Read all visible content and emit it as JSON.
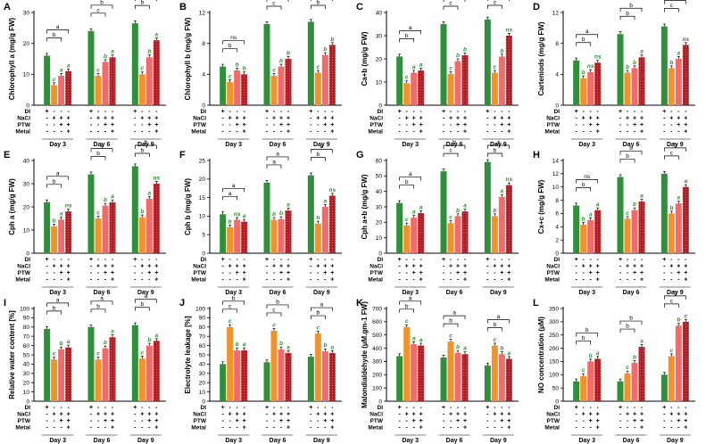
{
  "colors": {
    "DI": "#2f8f3a",
    "NaCl": "#f2922a",
    "PTW": "#f26b6b",
    "Metal": "#c8232c",
    "sig": "#2e8b2e"
  },
  "treatments": [
    "DI",
    "NaCl",
    "PTW",
    "Metal"
  ],
  "days": [
    "Day 3",
    "Day 6",
    "Day 9"
  ],
  "pattern": [
    [
      "+",
      "-",
      "-",
      "-"
    ],
    [
      "-",
      "+",
      "+",
      "+"
    ],
    [
      "-",
      "-",
      "+",
      "+"
    ],
    [
      "-",
      "-",
      "-",
      "+"
    ]
  ],
  "chart_data": [
    {
      "type": "bar",
      "panel": "A",
      "ylabel": "Chlorophyll a (mg/g FW)",
      "ylim": [
        0,
        30
      ],
      "yticks": [
        0,
        10,
        20,
        30
      ],
      "series": [
        {
          "name": "DI",
          "values": [
            16,
            24,
            26.5
          ]
        },
        {
          "name": "NaCl",
          "values": [
            6.5,
            9.5,
            10
          ]
        },
        {
          "name": "PTW",
          "values": [
            9.5,
            14,
            15.5
          ]
        },
        {
          "name": "Metal",
          "values": [
            11,
            15.5,
            21
          ]
        }
      ],
      "letters": [
        [
          "c",
          "a",
          "a"
        ],
        [
          "c",
          "b",
          "a"
        ],
        [
          "c",
          "b",
          "a"
        ]
      ],
      "brackets": [
        [
          "b",
          "a"
        ],
        [
          "c",
          "b"
        ],
        [
          "b",
          "a"
        ]
      ]
    },
    {
      "type": "bar",
      "panel": "B",
      "ylabel": "Chlorophyll b (mg/g FW)",
      "ylim": [
        0,
        12
      ],
      "yticks": [
        0,
        4,
        8,
        12
      ],
      "series": [
        {
          "name": "DI",
          "values": [
            5,
            10.5,
            10.8
          ]
        },
        {
          "name": "NaCl",
          "values": [
            3,
            3.8,
            4.2
          ]
        },
        {
          "name": "PTW",
          "values": [
            4.5,
            5,
            6.5
          ]
        },
        {
          "name": "Metal",
          "values": [
            4,
            6,
            7.8
          ]
        }
      ],
      "letters": [
        [
          "c",
          "b",
          "b"
        ],
        [
          "c",
          "b",
          "b"
        ],
        [
          "c",
          "b",
          "b"
        ]
      ],
      "brackets": [
        [
          "b",
          "ns"
        ],
        [
          "c",
          "b"
        ],
        [
          "b",
          "a"
        ]
      ]
    },
    {
      "type": "bar",
      "panel": "C",
      "ylabel": "Ca+b (mg/g FW)",
      "ylim": [
        0,
        40
      ],
      "yticks": [
        0,
        10,
        20,
        30,
        40
      ],
      "series": [
        {
          "name": "DI",
          "values": [
            21,
            35,
            37
          ]
        },
        {
          "name": "NaCl",
          "values": [
            9.5,
            13.5,
            14
          ]
        },
        {
          "name": "PTW",
          "values": [
            14,
            19,
            21
          ]
        },
        {
          "name": "Metal",
          "values": [
            15,
            21.5,
            30
          ]
        }
      ],
      "letters": [
        [
          "c",
          "a",
          "a"
        ],
        [
          "c",
          "b",
          "b"
        ],
        [
          "c",
          "b",
          "ns"
        ]
      ],
      "brackets": [
        [
          "b",
          "a"
        ],
        [
          "c",
          "b"
        ],
        [
          "c",
          "b"
        ]
      ]
    },
    {
      "type": "bar",
      "panel": "D",
      "ylabel": "Carteniods (mg/g FW)",
      "ylim": [
        0,
        12
      ],
      "yticks": [
        0,
        4,
        8,
        12
      ],
      "series": [
        {
          "name": "DI",
          "values": [
            5.8,
            9.2,
            10.2
          ]
        },
        {
          "name": "NaCl",
          "values": [
            3.5,
            4.2,
            4.8
          ]
        },
        {
          "name": "PTW",
          "values": [
            4.3,
            4.8,
            6
          ]
        },
        {
          "name": "Metal",
          "values": [
            5.5,
            6.2,
            7.8
          ]
        }
      ],
      "letters": [
        [
          "b",
          "ns",
          "ns"
        ],
        [
          "b",
          "b",
          "a"
        ],
        [
          "b",
          "a",
          "ns"
        ]
      ],
      "brackets": [
        [
          "b",
          "a"
        ],
        [
          "b",
          "b"
        ],
        [
          "c",
          "b"
        ]
      ]
    },
    {
      "type": "bar",
      "panel": "E",
      "ylabel": "Cph a (mg/g FW)",
      "ylim": [
        0,
        40
      ],
      "yticks": [
        0,
        10,
        20,
        30,
        40
      ],
      "series": [
        {
          "name": "DI",
          "values": [
            22,
            34,
            37.5
          ]
        },
        {
          "name": "NaCl",
          "values": [
            11.5,
            15,
            15.5
          ]
        },
        {
          "name": "PTW",
          "values": [
            14.5,
            20.5,
            23.5
          ]
        },
        {
          "name": "Metal",
          "values": [
            18,
            22,
            30
          ]
        }
      ],
      "letters": [
        [
          "b",
          "a",
          "ns"
        ],
        [
          "c",
          "b",
          "a"
        ],
        [
          "b",
          "a",
          "ns"
        ]
      ],
      "brackets": [
        [
          "b",
          "a"
        ],
        [
          "b",
          "a"
        ],
        [
          "b",
          "b"
        ]
      ]
    },
    {
      "type": "bar",
      "panel": "F",
      "ylabel": "Cph b (mg/g FW)",
      "ylim": [
        0,
        25
      ],
      "yticks": [
        0,
        5,
        10,
        15,
        20,
        25
      ],
      "series": [
        {
          "name": "DI",
          "values": [
            10.5,
            19,
            21
          ]
        },
        {
          "name": "NaCl",
          "values": [
            7,
            9,
            8
          ]
        },
        {
          "name": "PTW",
          "values": [
            9,
            9.2,
            12.5
          ]
        },
        {
          "name": "Metal",
          "values": [
            8.5,
            11.5,
            15.5
          ]
        }
      ],
      "letters": [
        [
          "b",
          "ns",
          "a"
        ],
        [
          "b",
          "b",
          "a"
        ],
        [
          "b",
          "a",
          "ns"
        ]
      ],
      "brackets": [
        [
          "a",
          "a"
        ],
        [
          "a",
          "a"
        ],
        [
          "b",
          "a"
        ]
      ]
    },
    {
      "type": "bar",
      "panel": "G",
      "ylabel": "Cph a+b (mg/g FW)",
      "ylim": [
        0,
        60
      ],
      "yticks": [
        0,
        10,
        20,
        30,
        40,
        50,
        60
      ],
      "series": [
        {
          "name": "DI",
          "values": [
            32.5,
            53,
            59
          ]
        },
        {
          "name": "NaCl",
          "values": [
            18,
            19.5,
            24
          ]
        },
        {
          "name": "PTW",
          "values": [
            23,
            24,
            36.5
          ]
        },
        {
          "name": "Metal",
          "values": [
            26,
            27,
            44
          ]
        }
      ],
      "letters": [
        [
          "c",
          "a",
          "a"
        ],
        [
          "c",
          "b",
          "a"
        ],
        [
          "b",
          "a",
          "ns"
        ]
      ],
      "brackets": [
        [
          "b",
          "a"
        ],
        [
          "c",
          "b"
        ],
        [
          "b",
          "a"
        ]
      ]
    },
    {
      "type": "bar",
      "panel": "H",
      "ylabel": "Cx+c (mg/g FW)",
      "ylim": [
        0,
        14
      ],
      "yticks": [
        0,
        2,
        4,
        6,
        8,
        10,
        12,
        14
      ],
      "series": [
        {
          "name": "DI",
          "values": [
            7.2,
            11.5,
            12
          ]
        },
        {
          "name": "NaCl",
          "values": [
            4.3,
            5.2,
            6
          ]
        },
        {
          "name": "PTW",
          "values": [
            5,
            6.5,
            7.5
          ]
        },
        {
          "name": "Metal",
          "values": [
            6.5,
            7.8,
            10
          ]
        }
      ],
      "letters": [
        [
          "b",
          "a",
          "a"
        ],
        [
          "c",
          "b",
          "a"
        ],
        [
          "b",
          "a",
          "a"
        ]
      ],
      "brackets": [
        [
          "b",
          "ns"
        ],
        [
          "b",
          "b"
        ],
        [
          "c",
          "b"
        ]
      ]
    },
    {
      "type": "bar",
      "panel": "I",
      "ylabel": "Relative water content [%]",
      "ylim": [
        0,
        100
      ],
      "yticks": [
        0,
        10,
        20,
        30,
        40,
        50,
        60,
        70,
        80,
        90,
        100
      ],
      "series": [
        {
          "name": "DI",
          "values": [
            78,
            80,
            82
          ]
        },
        {
          "name": "NaCl",
          "values": [
            45,
            45,
            46
          ]
        },
        {
          "name": "PTW",
          "values": [
            56,
            57,
            60
          ]
        },
        {
          "name": "Metal",
          "values": [
            58,
            69,
            65
          ]
        }
      ],
      "letters": [
        [
          "c",
          "b",
          "a"
        ],
        [
          "c",
          "b",
          "a"
        ],
        [
          "c",
          "b",
          "a"
        ]
      ],
      "brackets": [
        [
          "b",
          "a"
        ],
        [
          "b",
          "a"
        ],
        [
          "b",
          "a"
        ]
      ]
    },
    {
      "type": "bar",
      "panel": "J",
      "ylabel": "Electrolyte leakage [%]",
      "ylim": [
        0,
        100
      ],
      "yticks": [
        0,
        10,
        20,
        30,
        40,
        50,
        60,
        70,
        80,
        90,
        100
      ],
      "series": [
        {
          "name": "DI",
          "values": [
            40,
            42,
            48
          ]
        },
        {
          "name": "NaCl",
          "values": [
            80,
            76,
            73
          ]
        },
        {
          "name": "PTW",
          "values": [
            55,
            56,
            54
          ]
        },
        {
          "name": "Metal",
          "values": [
            55,
            52,
            52
          ]
        }
      ],
      "letters": [
        [
          "c",
          "b",
          "a"
        ],
        [
          "c",
          "b",
          "a"
        ],
        [
          "c",
          "b",
          "a"
        ]
      ],
      "brackets": [
        [
          "c",
          "b"
        ],
        [
          "c",
          "b"
        ],
        [
          "b",
          "a"
        ]
      ]
    },
    {
      "type": "bar",
      "panel": "K",
      "ylabel": "Malondialdehyde (µM.gm-1 FW)",
      "ylim": [
        0,
        700
      ],
      "yticks": [
        0,
        100,
        200,
        300,
        400,
        500,
        600,
        700
      ],
      "series": [
        {
          "name": "DI",
          "values": [
            340,
            330,
            270
          ]
        },
        {
          "name": "NaCl",
          "values": [
            560,
            450,
            420
          ]
        },
        {
          "name": "PTW",
          "values": [
            430,
            365,
            355
          ]
        },
        {
          "name": "Metal",
          "values": [
            420,
            355,
            320
          ]
        }
      ],
      "letters": [
        [
          "c",
          "a",
          "a"
        ],
        [
          "c",
          "b",
          "a"
        ],
        [
          "c",
          "b",
          "a"
        ]
      ],
      "brackets": [
        [
          "b",
          "a"
        ],
        [
          "b",
          "a"
        ],
        [
          "b",
          "a"
        ]
      ]
    },
    {
      "type": "bar",
      "panel": "L",
      "ylabel": "NO concentration (µM)",
      "ylim": [
        0,
        350
      ],
      "yticks": [
        0,
        50,
        100,
        150,
        200,
        250,
        300,
        350
      ],
      "series": [
        {
          "name": "DI",
          "values": [
            75,
            75,
            100
          ]
        },
        {
          "name": "NaCl",
          "values": [
            95,
            105,
            170
          ]
        },
        {
          "name": "PTW",
          "values": [
            150,
            145,
            285
          ]
        },
        {
          "name": "Metal",
          "values": [
            160,
            205,
            300
          ]
        }
      ],
      "letters": [
        [
          "c",
          "b",
          "a"
        ],
        [
          "c",
          "b",
          "a"
        ],
        [
          "c",
          "b",
          "c"
        ]
      ],
      "brackets": [
        [
          "b",
          "b"
        ],
        [
          "b",
          "b"
        ],
        [
          "c",
          "b"
        ]
      ]
    }
  ]
}
